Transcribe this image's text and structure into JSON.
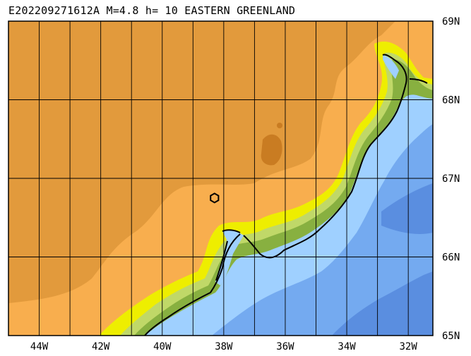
{
  "title": "E202209271612A M=4.8 h= 10 EASTERN GREENLAND",
  "map": {
    "lon_range": [
      -45.0,
      -31.2
    ],
    "lat_range": [
      65,
      69
    ],
    "lat_labels": [
      {
        "lat": 69,
        "label": "69N"
      },
      {
        "lat": 68,
        "label": "68N"
      },
      {
        "lat": 67,
        "label": "67N"
      },
      {
        "lat": 66,
        "label": "66N"
      },
      {
        "lat": 65,
        "label": "65N"
      }
    ],
    "lon_labels": [
      {
        "lon": -44,
        "label": "44W"
      },
      {
        "lon": -42,
        "label": "42W"
      },
      {
        "lon": -40,
        "label": "40W"
      },
      {
        "lon": -38,
        "label": "38W"
      },
      {
        "lon": -36,
        "label": "36W"
      },
      {
        "lon": -34,
        "label": "34W"
      },
      {
        "lon": -32,
        "label": "32W"
      }
    ],
    "epicenter": {
      "lon": -38.3,
      "lat": 66.75,
      "marker": "hexagon-icon"
    },
    "colors": {
      "ice_high": "#e29a3c",
      "ice_mid": "#f8ae4e",
      "ice_dark": "#c97c22",
      "land_yellow": "#eeee00",
      "land_lightgreen": "#c0d868",
      "land_green": "#88b040",
      "land_darkgreen": "#5a8a2a",
      "sea_light": "#9fd0ff",
      "sea_mid": "#74aaf0",
      "sea_deep": "#5a8ee0",
      "coast": "#000000",
      "grid": "#000000"
    }
  }
}
